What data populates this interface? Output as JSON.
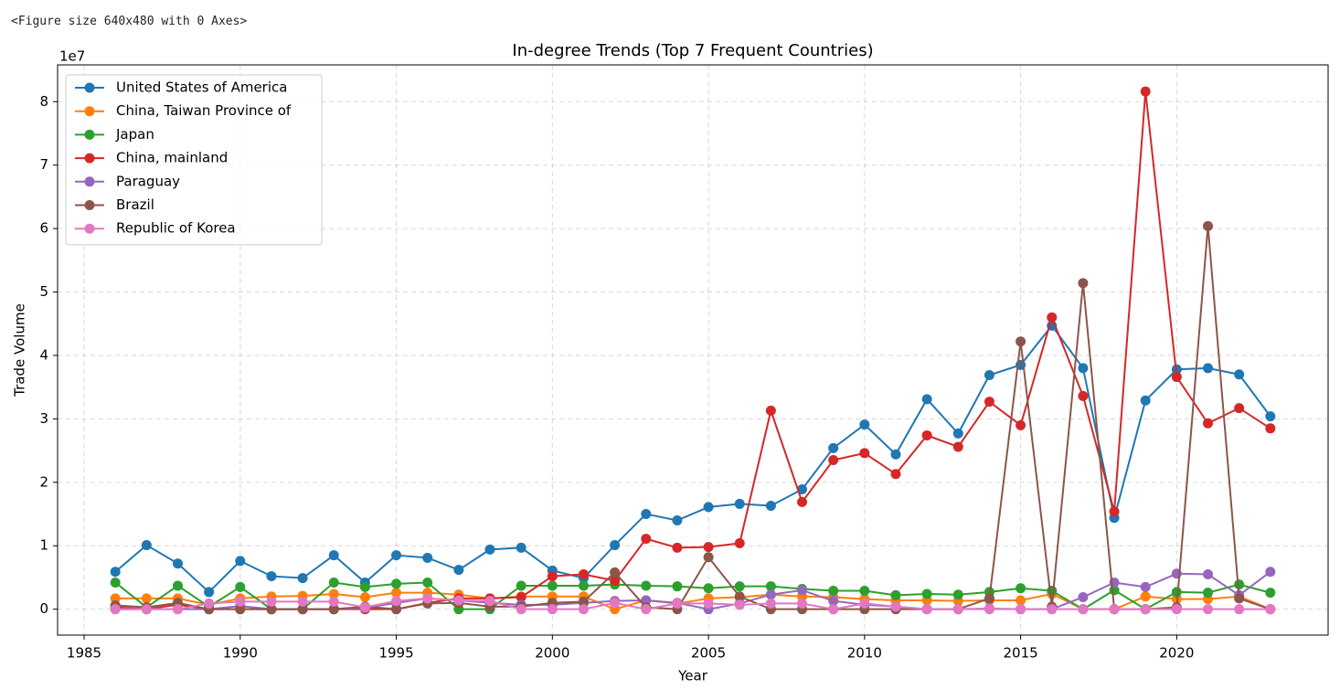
{
  "notebook_output": "<Figure size 640x480 with 0 Axes>",
  "chart_data": {
    "type": "line",
    "title": "In-degree Trends (Top 7 Frequent Countries)",
    "x_label": "Year",
    "y_label": "Trade Volume",
    "y_offset_label": "1e7",
    "grid": true,
    "legend": "upper left",
    "x": [
      1986,
      1987,
      1988,
      1989,
      1990,
      1991,
      1992,
      1993,
      1994,
      1995,
      1996,
      1997,
      1998,
      1999,
      2000,
      2001,
      2002,
      2003,
      2004,
      2005,
      2006,
      2007,
      2008,
      2009,
      2010,
      2011,
      2012,
      2013,
      2014,
      2015,
      2016,
      2017,
      2018,
      2019,
      2020,
      2021,
      2022,
      2023
    ],
    "xlim": [
      1984.15,
      2024.85
    ],
    "xticks": [
      1985,
      1990,
      1995,
      2000,
      2005,
      2010,
      2015,
      2020
    ],
    "ylim": [
      -4080000,
      85800000
    ],
    "yticks": [
      {
        "value": 0,
        "label": "0"
      },
      {
        "value": 10000000,
        "label": "1"
      },
      {
        "value": 20000000,
        "label": "2"
      },
      {
        "value": 30000000,
        "label": "3"
      },
      {
        "value": 40000000,
        "label": "4"
      },
      {
        "value": 50000000,
        "label": "5"
      },
      {
        "value": 60000000,
        "label": "6"
      },
      {
        "value": 70000000,
        "label": "7"
      },
      {
        "value": 80000000,
        "label": "8"
      }
    ],
    "series": [
      {
        "name": "United States of America",
        "color": "#1f77b4",
        "values": [
          5900000,
          10100000,
          7200000,
          2700000,
          7600000,
          5200000,
          4900000,
          8500000,
          4200000,
          8500000,
          8100000,
          6200000,
          9400000,
          9700000,
          6100000,
          4900000,
          10100000,
          15000000,
          14000000,
          16100000,
          16600000,
          16300000,
          18900000,
          25400000,
          29100000,
          24400000,
          33100000,
          27700000,
          36900000,
          38500000,
          44700000,
          38000000,
          14400000,
          32900000,
          37800000,
          38000000,
          37000000,
          30400000
        ]
      },
      {
        "name": "China, Taiwan Province of",
        "color": "#ff7f0e",
        "values": [
          1700000,
          1700000,
          1700000,
          700000,
          1700000,
          2000000,
          2100000,
          2400000,
          1900000,
          2600000,
          2600000,
          2300000,
          1700000,
          2000000,
          2000000,
          2000000,
          0,
          1400000,
          900000,
          1700000,
          1900000,
          2300000,
          2000000,
          1900000,
          1600000,
          1400000,
          1400000,
          1300000,
          1400000,
          1400000,
          2400000,
          0,
          0,
          2000000,
          1600000,
          1600000,
          2000000,
          0
        ]
      },
      {
        "name": "Japan",
        "color": "#2ca02c",
        "values": [
          4200000,
          300000,
          3700000,
          400000,
          3500000,
          0,
          0,
          4200000,
          3500000,
          4000000,
          4200000,
          0,
          0,
          3700000,
          3700000,
          3700000,
          3900000,
          3700000,
          3600000,
          3300000,
          3600000,
          3600000,
          3200000,
          2900000,
          2900000,
          2200000,
          2400000,
          2300000,
          2700000,
          3300000,
          2900000,
          0,
          3000000,
          0,
          2700000,
          2600000,
          3900000,
          2600000
        ]
      },
      {
        "name": "China, mainland",
        "color": "#d62728",
        "values": [
          300000,
          0,
          700000,
          0,
          0,
          0,
          0,
          0,
          0,
          0,
          1000000,
          1700000,
          1700000,
          1900000,
          5200000,
          5500000,
          4500000,
          11100000,
          9700000,
          9800000,
          10400000,
          31300000,
          16900000,
          23500000,
          24600000,
          21300000,
          27400000,
          25600000,
          32700000,
          29000000,
          46000000,
          33600000,
          15400000,
          81600000,
          36600000,
          29300000,
          31700000,
          28500000
        ]
      },
      {
        "name": "Paraguay",
        "color": "#9467bd",
        "values": [
          0,
          0,
          0,
          0,
          500000,
          0,
          0,
          0,
          200000,
          1000000,
          1700000,
          1400000,
          1000000,
          700000,
          700000,
          1000000,
          1300000,
          1400000,
          1000000,
          0,
          900000,
          2300000,
          3000000,
          1300000,
          700000,
          400000,
          0,
          0,
          100000,
          0,
          0,
          1900000,
          4200000,
          3500000,
          5600000,
          5500000,
          2200000,
          5900000
        ]
      },
      {
        "name": "Brazil",
        "color": "#8c564b",
        "values": [
          600000,
          300000,
          1000000,
          0,
          0,
          0,
          0,
          0,
          400000,
          0,
          900000,
          1000000,
          400000,
          400000,
          1000000,
          1200000,
          5800000,
          300000,
          0,
          8200000,
          2000000,
          0,
          0,
          0,
          0,
          0,
          0,
          0,
          1700000,
          42200000,
          400000,
          51400000,
          0,
          0,
          300000,
          60400000,
          1700000,
          0
        ]
      },
      {
        "name": "Republic of Korea",
        "color": "#e377c2",
        "values": [
          0,
          0,
          0,
          900000,
          1200000,
          1200000,
          1200000,
          1200000,
          300000,
          1300000,
          1700000,
          1400000,
          1300000,
          0,
          0,
          0,
          1000000,
          0,
          900000,
          900000,
          700000,
          900000,
          900000,
          0,
          900000,
          400000,
          0,
          0,
          0,
          0,
          0,
          0,
          0,
          0,
          0,
          0,
          0,
          0
        ]
      }
    ]
  }
}
